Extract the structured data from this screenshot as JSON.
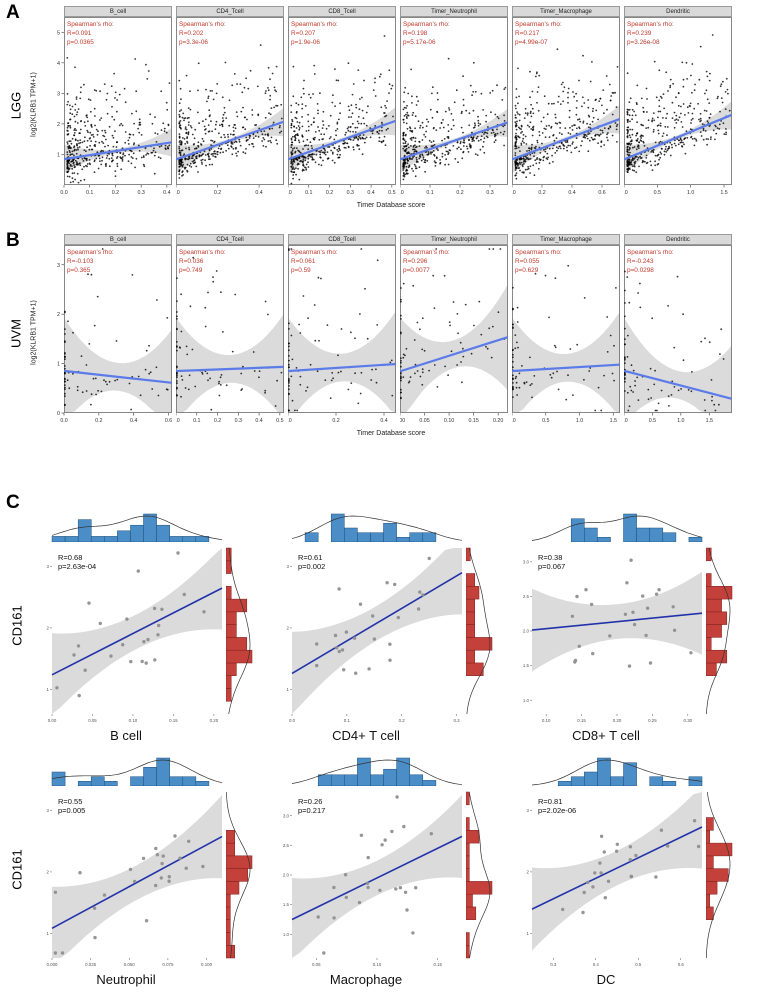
{
  "chart_data": {
    "type": "scatter",
    "colors": {
      "stats_red": "#c0392b",
      "reg_blue_ab": "#5b7be8",
      "reg_blue_c": "#2233aa",
      "point_black": "#000000",
      "point_gray": "#8f8f8f",
      "hist_blue": "#4b8ec7",
      "hist_blue_border": "#1d4e79",
      "hist_red": "#c4403a",
      "hist_red_border": "#7c1f1c",
      "strip_bg": "#d9d9d9",
      "band_gray": "rgba(127,127,127,0.28)"
    },
    "panels": [
      {
        "id": "A",
        "label": "A",
        "cancer": "LGG",
        "ylabel": "log2(KLRB1 TPM+1)",
        "xlabel": "Timer Database score",
        "stat_prefix": "Spearman's rho:",
        "ylim": [
          0,
          5.5
        ],
        "yticks": [
          "1",
          "2",
          "3",
          "4",
          "5"
        ],
        "style": {
          "n": 430,
          "b0": 0.85,
          "riseK": 6,
          "noise": 0.5,
          "xskew": 2.0,
          "edgeFrac": 0,
          "band0": 0.07,
          "band1": 0.4
        },
        "facets": [
          {
            "title": "B_cell",
            "R": "0.091",
            "p": "0.0365",
            "r": 0.091,
            "seed": 101,
            "xlim": [
              0,
              0.42
            ],
            "xticks": [
              "0.0",
              "0.1",
              "0.2",
              "0.3",
              "0.4"
            ]
          },
          {
            "title": "CD4_Tcell",
            "R": "0.202",
            "p": "3.3e-06",
            "r": 0.202,
            "seed": 102,
            "xlim": [
              0,
              0.52
            ],
            "xticks": [
              "0.0",
              "0.2",
              "0.4"
            ]
          },
          {
            "title": "CD8_Tcell",
            "R": "0.207",
            "p": "1.9e-06",
            "r": 0.207,
            "seed": 103,
            "xlim": [
              0,
              0.52
            ],
            "xticks": [
              "0.0",
              "0.1",
              "0.2",
              "0.3",
              "0.4",
              "0.5"
            ]
          },
          {
            "title": "Timer_Neutrophil",
            "R": "0.198",
            "p": "5.17e-06",
            "r": 0.198,
            "seed": 104,
            "xlim": [
              0,
              0.36
            ],
            "xticks": [
              "0.0",
              "0.1",
              "0.2",
              "0.3"
            ]
          },
          {
            "title": "Timer_Macrophage",
            "R": "0.217",
            "p": "4.99e-07",
            "r": 0.217,
            "seed": 105,
            "xlim": [
              0,
              0.72
            ],
            "xticks": [
              "0.0",
              "0.2",
              "0.4",
              "0.6"
            ]
          },
          {
            "title": "Dendritic",
            "R": "0.239",
            "p": "3.26e-08",
            "r": 0.239,
            "seed": 106,
            "xlim": [
              0,
              1.62
            ],
            "xticks": [
              "0.0",
              "0.5",
              "1.0",
              "1.5"
            ]
          }
        ]
      },
      {
        "id": "B",
        "label": "B",
        "cancer": "UVM",
        "ylabel": "log2(KLRB1 TPM+1)",
        "xlabel": "Timer Database score",
        "stat_prefix": "Spearman's rho:",
        "ylim": [
          0,
          3.4
        ],
        "yticks": [
          "0",
          "1",
          "2",
          "3"
        ],
        "style": {
          "n": 82,
          "b0": 0.85,
          "riseK": 2.3,
          "noise": 0.55,
          "xskew": 1.6,
          "edgeFrac": 0.3,
          "band0": 0.28,
          "band1": 0.8
        },
        "facets": [
          {
            "title": "B_cell",
            "R": "-0.103",
            "p": "0.365",
            "r": -0.103,
            "seed": 201,
            "xlim": [
              0,
              0.62
            ],
            "xticks": [
              "0.0",
              "0.2",
              "0.4",
              "0.6"
            ]
          },
          {
            "title": "CD4_Tcell",
            "R": "0.036",
            "p": "0.749",
            "r": 0.036,
            "seed": 202,
            "xlim": [
              0,
              0.52
            ],
            "xticks": [
              "0.0",
              "0.1",
              "0.2",
              "0.3",
              "0.4",
              "0.5"
            ]
          },
          {
            "title": "CD8_Tcell",
            "R": "0.061",
            "p": "0.59",
            "r": 0.061,
            "seed": 203,
            "xlim": [
              0,
              0.45
            ],
            "xticks": [
              "0.0",
              "0.2",
              "0.4"
            ]
          },
          {
            "title": "Timer_Neutrophil",
            "R": "0.296",
            "p": "0.0077",
            "r": 0.296,
            "seed": 204,
            "xlim": [
              0,
              0.22
            ],
            "xticks": [
              "0.00",
              "0.05",
              "0.10",
              "0.15",
              "0.20"
            ]
          },
          {
            "title": "Timer_Macrophage",
            "R": "0.055",
            "p": "0.629",
            "r": 0.055,
            "seed": 205,
            "xlim": [
              0,
              1.6
            ],
            "xticks": [
              "0.0",
              "0.5",
              "1.0",
              "1.5"
            ]
          },
          {
            "title": "Dendritic",
            "R": "-0.243",
            "p": "0.0298",
            "r": -0.243,
            "seed": 206,
            "xlim": [
              0,
              1.9
            ],
            "xticks": [
              "0.0",
              "0.5",
              "1.0",
              "1.5"
            ]
          }
        ]
      }
    ],
    "panelC": {
      "label": "C",
      "ylabel": "CD161",
      "rows": [
        [
          0,
          1,
          2
        ],
        [
          3,
          4,
          5
        ]
      ],
      "plots": [
        {
          "name": "B cell",
          "R": "0.68",
          "p": "2.63e-04",
          "r": 0.68,
          "seed": 11,
          "n": 24,
          "xlim": [
            0,
            0.21
          ],
          "xticks": [
            "0.00",
            "0.05",
            "0.10",
            "0.15",
            "0.20"
          ],
          "ylim": [
            0.6,
            3.3
          ],
          "yticks": [
            "1",
            "2",
            "3"
          ]
        },
        {
          "name": "CD4+ T cell",
          "R": "0.61",
          "p": "0.002",
          "r": 0.61,
          "seed": 12,
          "n": 24,
          "xlim": [
            0,
            0.31
          ],
          "xticks": [
            "0.0",
            "0.1",
            "0.2",
            "0.3"
          ],
          "ylim": [
            0.6,
            3.3
          ],
          "yticks": [
            "1",
            "2",
            "3"
          ]
        },
        {
          "name": "CD8+ T cell",
          "R": "0.38",
          "p": "0.067",
          "r": 0.38,
          "seed": 13,
          "n": 24,
          "xlim": [
            0.08,
            0.32
          ],
          "xticks": [
            "0.10",
            "0.15",
            "0.20",
            "0.25",
            "0.30"
          ],
          "ylim": [
            0.8,
            3.2
          ],
          "yticks": [
            "1.0",
            "1.5",
            "2.0",
            "2.5",
            "3.0"
          ]
        },
        {
          "name": "Neutrophil",
          "R": "0.55",
          "p": "0.005",
          "r": 0.55,
          "seed": 14,
          "n": 24,
          "xlim": [
            0,
            0.11
          ],
          "xticks": [
            "0.000",
            "0.025",
            "0.050",
            "0.075",
            "0.100"
          ],
          "ylim": [
            0.6,
            3.3
          ],
          "yticks": [
            "1",
            "2",
            "3"
          ]
        },
        {
          "name": "Macrophage",
          "R": "0.26",
          "p": "0.217",
          "r": 0.26,
          "seed": 15,
          "n": 24,
          "xlim": [
            0.03,
            0.17
          ],
          "xticks": [
            "0.05",
            "0.10",
            "0.15"
          ],
          "ylim": [
            0.6,
            3.4
          ],
          "yticks": [
            "1.0",
            "1.5",
            "2.0",
            "2.5",
            "3.0"
          ]
        },
        {
          "name": "DC",
          "R": "0.81",
          "p": "2.02e-06",
          "r": 0.81,
          "seed": 16,
          "n": 24,
          "xlim": [
            0.25,
            0.65
          ],
          "xticks": [
            "0.3",
            "0.4",
            "0.5",
            "0.6"
          ],
          "ylim": [
            0.6,
            3.3
          ],
          "yticks": [
            "1",
            "2",
            "3"
          ]
        }
      ]
    }
  }
}
